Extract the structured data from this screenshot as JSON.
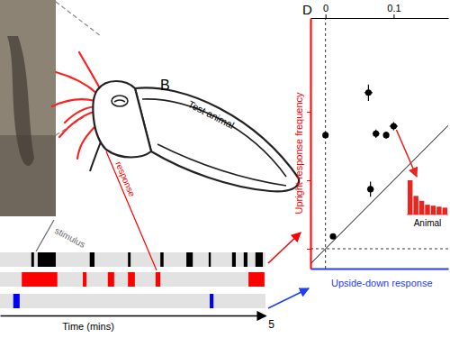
{
  "chart_data": [
    {
      "type": "raster",
      "title": "B",
      "annotations": [
        "Test animal"
      ],
      "x_label": "Time (mins)",
      "xlim": [
        0,
        5
      ],
      "xticks": [
        5
      ],
      "series": [
        {
          "name": "stimulus",
          "color": "#000000",
          "values": [
            [
              0.59,
              0.64
            ],
            [
              0.71,
              1.05
            ],
            [
              1.69,
              1.78
            ],
            [
              2.41,
              2.46
            ],
            [
              3.02,
              3.08
            ],
            [
              3.51,
              3.63
            ],
            [
              3.93,
              3.97
            ],
            [
              4.37,
              4.44
            ],
            [
              4.59,
              4.66
            ],
            [
              4.81,
              4.95
            ]
          ]
        },
        {
          "name": "response",
          "color": "#ff0000",
          "values": [
            [
              0.41,
              1.08
            ],
            [
              1.56,
              1.63
            ],
            [
              2.03,
              2.15
            ],
            [
              2.41,
              2.54
            ],
            [
              2.93,
              3.02
            ],
            [
              4.68,
              4.98
            ]
          ]
        },
        {
          "color": "#0000ff",
          "values": [
            [
              0.25,
              0.37
            ],
            [
              3.95,
              4.02
            ]
          ]
        }
      ]
    },
    {
      "type": "scatter",
      "title": "D",
      "x_label": "Upside-down response",
      "y_label": "Upright response frequency",
      "x": [
        0,
        0.011,
        0.063,
        0.066,
        0.074,
        0.089,
        0.1
      ],
      "values": [
        0.166,
        0.018,
        0.228,
        0.087,
        0.168,
        0.166,
        0.179
      ],
      "x_err": [
        0.002,
        0.003,
        0.006,
        0.005,
        0.005,
        0.004,
        0.006
      ],
      "y_err": [
        0.003,
        0.003,
        0.012,
        0.011,
        0.006,
        0.005,
        0.006
      ],
      "color": "#000000",
      "marker": "circle",
      "xlim": [
        -0.022,
        0.18
      ],
      "ylim": [
        -0.029,
        0.337
      ],
      "xticks": [
        0,
        0.1
      ],
      "yticks": [
        0,
        0.1,
        0.2
      ],
      "tick_labels": "x"
    },
    {
      "type": "bar",
      "x_label": "Animal",
      "categories": [
        null,
        null,
        null,
        null,
        null,
        null,
        null
      ],
      "values": [
        35,
        19,
        14,
        10,
        9,
        8,
        7
      ],
      "ylim": [
        0,
        35
      ],
      "color": "#e8251f",
      "tick_labels": false
    }
  ]
}
